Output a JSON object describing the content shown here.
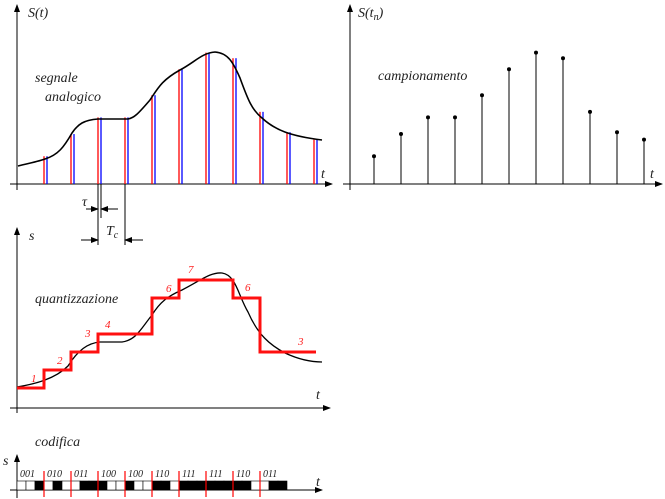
{
  "panels": {
    "analog": {
      "y_label": "S(t)",
      "x_label": "t",
      "caption_line1": "segnale",
      "caption_line2": "analogico",
      "tau_label": "τ",
      "tc_label": "T",
      "tc_sub": "c"
    },
    "sampling": {
      "y_label": "S(t",
      "y_sub": "n",
      "y_close": ")",
      "x_label": "t",
      "caption": "campionamento"
    },
    "quantization": {
      "y_label": "s",
      "x_label": "t",
      "caption": "quantizzazione"
    },
    "coding": {
      "y_label": "s",
      "x_label": "t",
      "caption": "codifica"
    }
  },
  "quant_levels": [
    "1",
    "2",
    "3",
    "4",
    "4",
    "6",
    "7",
    "7",
    "6",
    "3"
  ],
  "level_values": [
    1,
    2,
    3,
    4,
    4,
    6,
    7,
    7,
    6,
    3
  ],
  "level_labels": [
    "1",
    "2",
    "3",
    "4",
    "6",
    "7",
    "6",
    "3"
  ],
  "sample_values": [
    1.5,
    2.7,
    3.6,
    3.6,
    4.8,
    6.2,
    7.1,
    6.8,
    3.9,
    2.8,
    2.4
  ],
  "codes": [
    "001",
    "010",
    "011",
    "100",
    "100",
    "110",
    "111",
    "111",
    "110",
    "011"
  ],
  "colors": {
    "sample_red": "#ff0000",
    "sample_blue": "#0000ff",
    "axis": "#000000"
  }
}
